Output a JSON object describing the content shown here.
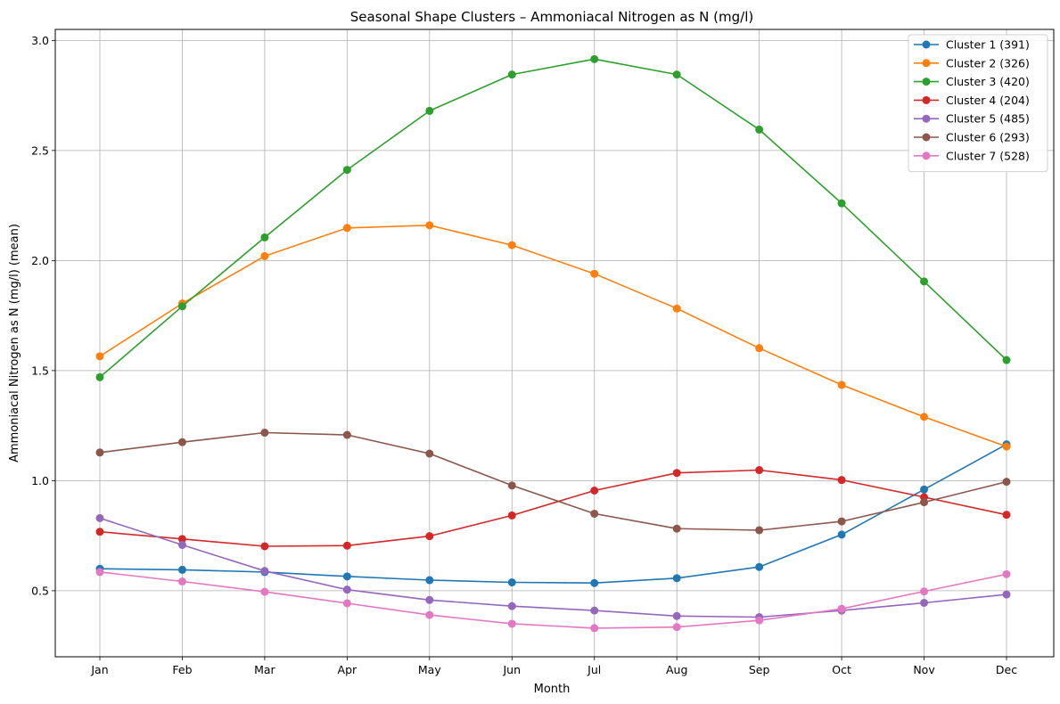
{
  "chart_data": {
    "type": "line",
    "title": "Seasonal Shape Clusters – Ammoniacal Nitrogen as N (mg/l)",
    "xlabel": "Month",
    "ylabel": "Ammoniacal Nitrogen as N (mg/l) (mean)",
    "categories": [
      "Jan",
      "Feb",
      "Mar",
      "Apr",
      "May",
      "Jun",
      "Jul",
      "Aug",
      "Sep",
      "Oct",
      "Nov",
      "Dec"
    ],
    "ylim": [
      0.2,
      3.05
    ],
    "yticks": [
      "0.5",
      "1.0",
      "1.5",
      "2.0",
      "2.5",
      "3.0"
    ],
    "grid": true,
    "legend_position": "top-right",
    "series": [
      {
        "name": "Cluster 1 (391)",
        "color": "#1f77b4",
        "values": [
          0.6,
          0.595,
          0.585,
          0.565,
          0.548,
          0.538,
          0.535,
          0.557,
          0.608,
          0.755,
          0.96,
          1.165
        ]
      },
      {
        "name": "Cluster 2 (326)",
        "color": "#ff7f0e",
        "values": [
          1.565,
          1.805,
          2.02,
          2.148,
          2.16,
          2.07,
          1.94,
          1.782,
          1.602,
          1.435,
          1.29,
          1.155
        ]
      },
      {
        "name": "Cluster 3 (420)",
        "color": "#2ca02c",
        "values": [
          1.47,
          1.792,
          2.105,
          2.412,
          2.68,
          2.845,
          2.915,
          2.845,
          2.595,
          2.26,
          1.905,
          1.548
        ]
      },
      {
        "name": "Cluster 4 (204)",
        "color": "#d62728",
        "values": [
          0.768,
          0.735,
          0.702,
          0.705,
          0.748,
          0.842,
          0.955,
          1.035,
          1.048,
          1.003,
          0.925,
          0.845
        ]
      },
      {
        "name": "Cluster 5 (485)",
        "color": "#9467bd",
        "values": [
          0.83,
          0.708,
          0.59,
          0.505,
          0.458,
          0.43,
          0.41,
          0.385,
          0.38,
          0.41,
          0.445,
          0.483
        ]
      },
      {
        "name": "Cluster 6 (293)",
        "color": "#8c564b",
        "values": [
          1.128,
          1.175,
          1.218,
          1.208,
          1.123,
          0.978,
          0.85,
          0.782,
          0.775,
          0.815,
          0.902,
          0.995
        ]
      },
      {
        "name": "Cluster 7 (528)",
        "color": "#e377c2",
        "values": [
          0.585,
          0.542,
          0.495,
          0.443,
          0.39,
          0.35,
          0.33,
          0.335,
          0.365,
          0.418,
          0.497,
          0.575
        ]
      }
    ]
  }
}
